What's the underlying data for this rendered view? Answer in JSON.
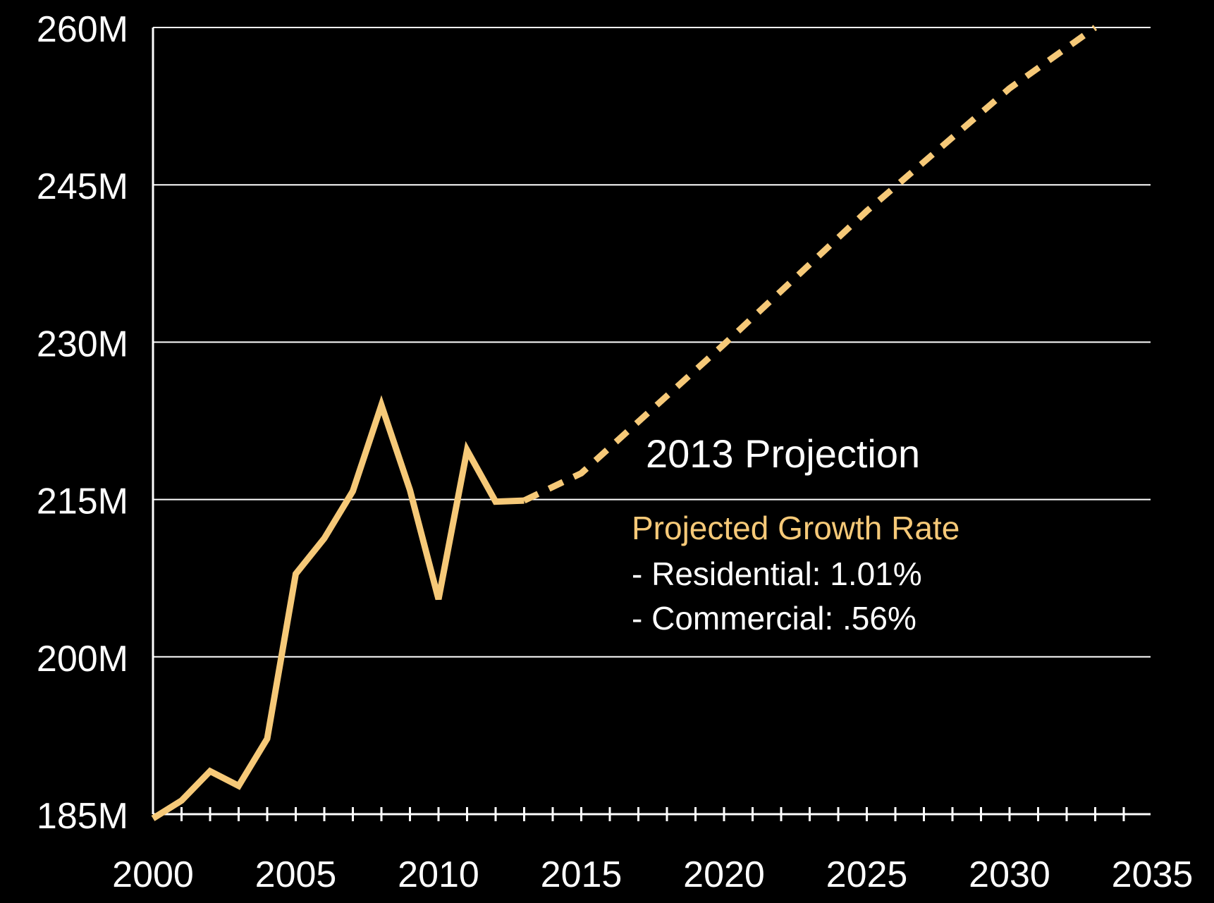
{
  "chart_data": {
    "type": "line",
    "x_ticks": [
      "2000",
      "2005",
      "2010",
      "2015",
      "2020",
      "2025",
      "2030",
      "2035"
    ],
    "y_ticks": [
      "185M",
      "200M",
      "215M",
      "230M",
      "245M",
      "260M"
    ],
    "xlim": [
      2000,
      2035
    ],
    "ylim": [
      185,
      260
    ],
    "y_unit": "M",
    "grid": "horizontal",
    "series": [
      {
        "style": "solid",
        "color": "#f6c978",
        "points": [
          [
            2000,
            184.6
          ],
          [
            2001,
            186.3
          ],
          [
            2002,
            189.1
          ],
          [
            2003,
            187.7
          ],
          [
            2004,
            192.2
          ],
          [
            2005,
            207.9
          ],
          [
            2006,
            211.3
          ],
          [
            2007,
            215.8
          ],
          [
            2008,
            224.0
          ],
          [
            2009,
            215.9
          ],
          [
            2010,
            205.5
          ],
          [
            2011,
            219.7
          ],
          [
            2012,
            214.8
          ],
          [
            2013,
            214.9
          ]
        ]
      },
      {
        "style": "dashed",
        "color": "#f6c978",
        "points": [
          [
            2013,
            214.9
          ],
          [
            2015,
            217.5
          ],
          [
            2020,
            229.8
          ],
          [
            2025,
            242.5
          ],
          [
            2030,
            254.2
          ],
          [
            2033,
            260.0
          ]
        ]
      }
    ],
    "annotation": {
      "title": "2013 Projection",
      "heading": "Projected Growth Rate",
      "lines": [
        "- Residential:  1.01%",
        "- Commercial:  .56%"
      ]
    }
  },
  "colors": {
    "background": "#000000",
    "line": "#f6c978",
    "grid": "#ffffff",
    "text": "#ffffff"
  }
}
